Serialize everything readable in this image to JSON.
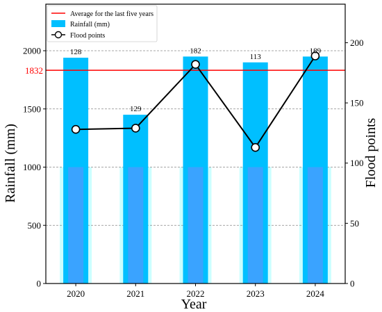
{
  "chart_data": {
    "type": "bar",
    "categories": [
      "2020",
      "2021",
      "2022",
      "2023",
      "2024"
    ],
    "xlabel": "Year",
    "ylabel": "Rainfall (mm)",
    "y2label": "Flood points",
    "ylim": [
      0,
      2400
    ],
    "y2lim": [
      0,
      232
    ],
    "yticks": [
      "0",
      "500",
      "1000",
      "1500",
      "2000"
    ],
    "y2ticks": [
      "0",
      "50",
      "100",
      "150",
      "200"
    ],
    "series": [
      {
        "name": "Rainfall (mm)",
        "kind": "bar",
        "axis": "left",
        "color": "#00bfff",
        "values": [
          1940,
          1450,
          1950,
          1900,
          1950
        ]
      },
      {
        "name": "Flood points",
        "kind": "line",
        "axis": "right",
        "color": "#000000",
        "marker": "open-circle",
        "values": [
          128,
          129,
          182,
          113,
          189
        ],
        "labels": [
          "128",
          "129",
          "182",
          "113",
          "189"
        ]
      }
    ],
    "reference_line": {
      "name": "Average for the last five years",
      "value": 1832,
      "label": "1832",
      "color": "#ff0000"
    },
    "grid": "horizontal dashed",
    "legend_position": "top-left"
  }
}
